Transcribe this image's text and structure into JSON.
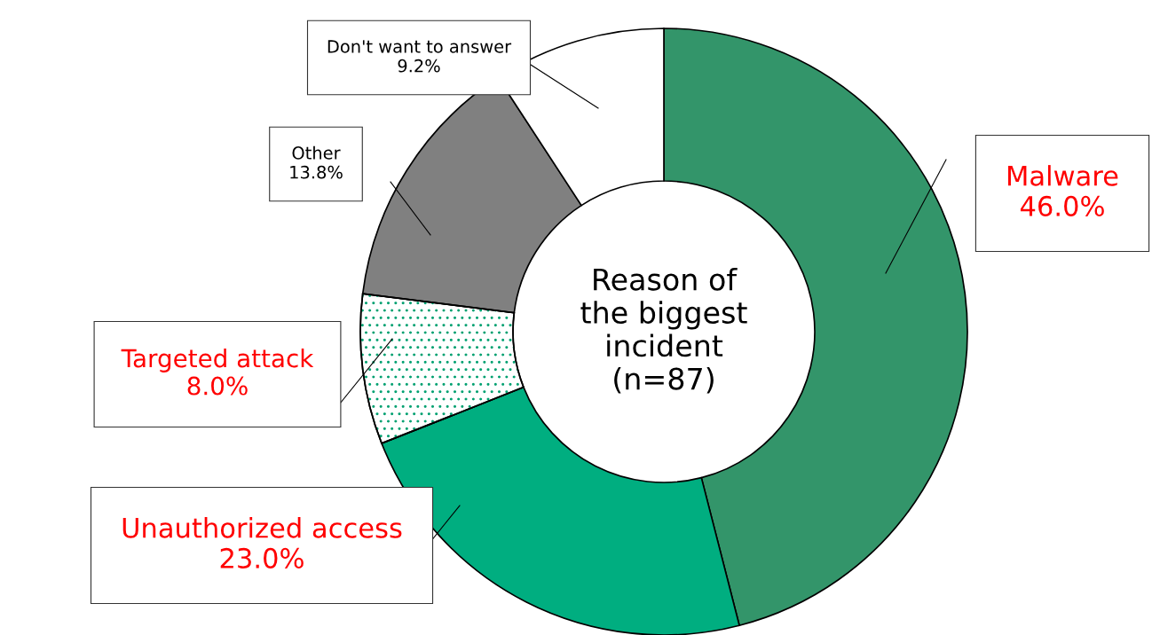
{
  "chart_data": {
    "type": "donut",
    "title": "Reason of\nthe biggest\nincident\n(n=87)",
    "categories": [
      "Malware",
      "Unauthorized access",
      "Targeted attack",
      "Other",
      "Don't want to answer"
    ],
    "values": [
      46.0,
      23.0,
      8.0,
      13.8,
      9.2
    ],
    "value_labels": [
      "46.0%",
      "23.0%",
      "8.0%",
      "13.8%",
      "9.2%"
    ],
    "colors": [
      "#33956a",
      "#00ae80",
      "#ffffff",
      "#808080",
      "#ffffff"
    ],
    "legend": false
  }
}
